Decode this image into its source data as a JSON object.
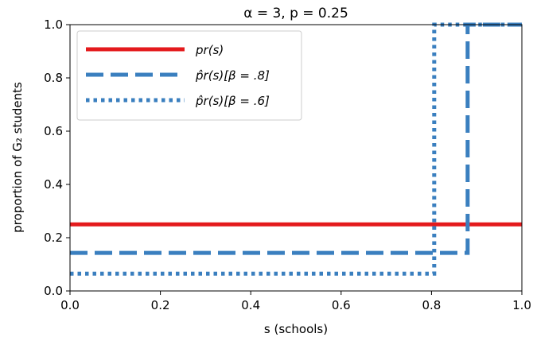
{
  "chart_data": {
    "type": "line",
    "title": "α = 3, p = 0.25",
    "xlabel": "s (schools)",
    "ylabel": "proportion of G₂ students",
    "xlim": [
      0.0,
      1.0
    ],
    "ylim": [
      0.0,
      1.0
    ],
    "xticks": [
      "0.0",
      "0.2",
      "0.4",
      "0.6",
      "0.8",
      "1.0"
    ],
    "yticks": [
      "0.0",
      "0.2",
      "0.4",
      "0.6",
      "0.8",
      "1.0"
    ],
    "grid": false,
    "legend_position": "top-left",
    "series": [
      {
        "name": "pr(s)",
        "style": "solid",
        "color": "#e41a1c",
        "points": [
          [
            0.0,
            0.25
          ],
          [
            1.0,
            0.25
          ]
        ]
      },
      {
        "name": "p̂r(s)[β = .8]",
        "style": "dashed",
        "color": "#3a7fbf",
        "points": [
          [
            0.0,
            0.143
          ],
          [
            0.88,
            0.143
          ],
          [
            0.88,
            1.0
          ],
          [
            1.0,
            1.0
          ]
        ]
      },
      {
        "name": "p̂r(s)[β = .6]",
        "style": "dotted",
        "color": "#3a7fbf",
        "points": [
          [
            0.0,
            0.065
          ],
          [
            0.806,
            0.065
          ],
          [
            0.806,
            1.0
          ],
          [
            1.0,
            1.0
          ]
        ]
      }
    ]
  }
}
